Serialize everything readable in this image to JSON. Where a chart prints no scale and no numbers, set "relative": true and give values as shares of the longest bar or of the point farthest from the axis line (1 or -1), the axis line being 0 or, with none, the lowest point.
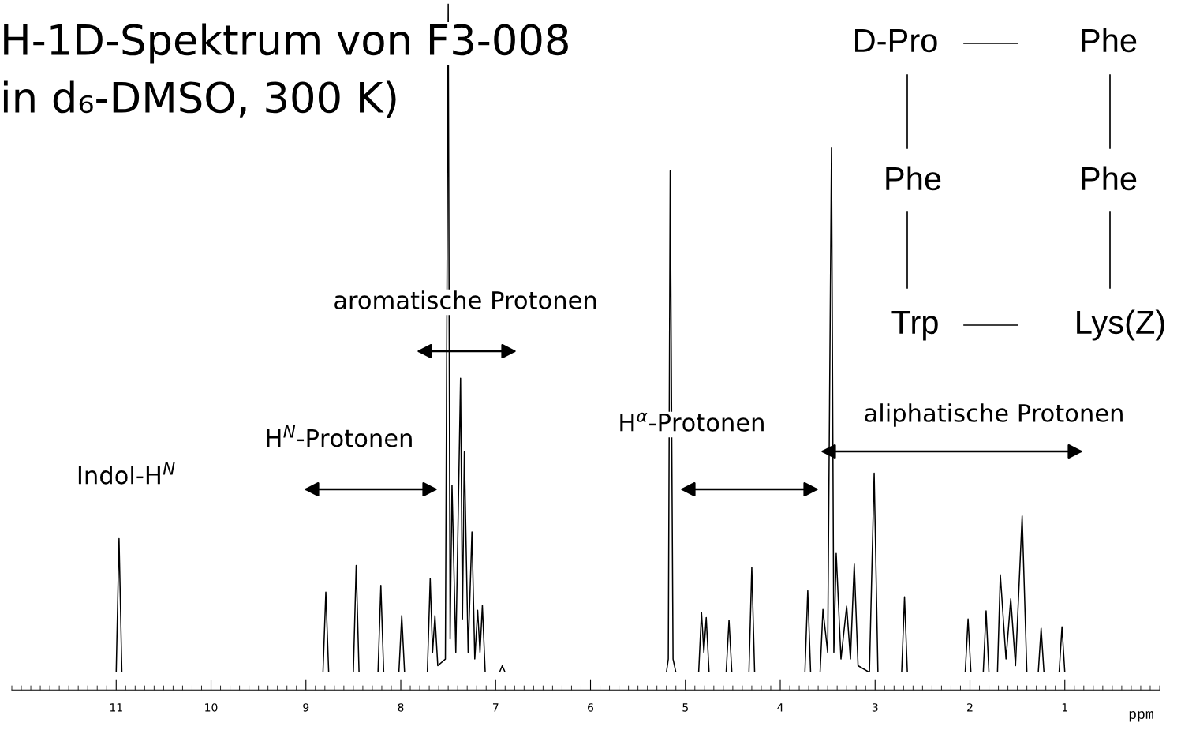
{
  "chart_data": {
    "type": "line",
    "relative": true,
    "title": "H-1D-Spektrum von F3-008",
    "subtitle": "in d₆-DMSO, 300 K)",
    "xlabel": "ppm",
    "xlim": [
      12.1,
      0.0
    ],
    "xticks": [
      11,
      10,
      9,
      8,
      7,
      6,
      5,
      4,
      3,
      2,
      1
    ],
    "x": [
      12.1,
      11.0,
      10.97,
      10.94,
      8.82,
      8.79,
      8.76,
      8.5,
      8.47,
      8.44,
      8.24,
      8.21,
      8.18,
      8.02,
      7.99,
      7.96,
      7.72,
      7.69,
      7.665,
      7.64,
      7.61,
      7.53,
      7.5,
      7.48,
      7.46,
      7.42,
      7.37,
      7.35,
      7.33,
      7.29,
      7.25,
      7.22,
      7.19,
      7.165,
      7.14,
      7.11,
      6.96,
      6.93,
      6.9,
      5.2,
      5.18,
      5.16,
      5.13,
      5.1,
      4.86,
      4.83,
      4.805,
      4.78,
      4.75,
      4.57,
      4.54,
      4.51,
      4.33,
      4.3,
      4.27,
      3.74,
      3.71,
      3.68,
      3.58,
      3.55,
      3.5,
      3.46,
      3.435,
      3.41,
      3.36,
      3.3,
      3.26,
      3.22,
      3.18,
      3.06,
      3.01,
      2.97,
      2.72,
      2.69,
      2.66,
      2.05,
      2.02,
      1.99,
      1.86,
      1.83,
      1.8,
      1.71,
      1.68,
      1.62,
      1.57,
      1.52,
      1.45,
      1.4,
      1.28,
      1.25,
      1.22,
      1.06,
      1.03,
      1.0,
      0.0
    ],
    "series": [
      {
        "color": "#000000",
        "values": [
          0,
          0,
          0.2,
          0,
          0,
          0.12,
          0,
          0,
          0.16,
          0,
          0,
          0.13,
          0,
          0,
          0.085,
          0,
          0,
          0.14,
          0.03,
          0.085,
          0.01,
          0.02,
          1.0,
          0.05,
          0.28,
          0.03,
          0.44,
          0.08,
          0.33,
          0.03,
          0.21,
          0.02,
          0.093,
          0.03,
          0.1,
          0,
          0,
          0.01,
          0,
          0,
          0.02,
          0.75,
          0.02,
          0,
          0,
          0.09,
          0.03,
          0.082,
          0,
          0,
          0.078,
          0,
          0,
          0.157,
          0,
          0,
          0.122,
          0,
          0,
          0.094,
          0.03,
          0.785,
          0.03,
          0.178,
          0.02,
          0.099,
          0.02,
          0.162,
          0.01,
          0,
          0.298,
          0,
          0,
          0.113,
          0,
          0,
          0.08,
          0,
          0,
          0.092,
          0,
          0,
          0.146,
          0.02,
          0.11,
          0.01,
          0.234,
          0,
          0,
          0.066,
          0,
          0,
          0.068,
          0,
          0
        ]
      }
    ],
    "annotations": [
      "Indol-H$^{N}$",
      "H$^{N}$-Protonen",
      "aromatische Protonen",
      "H$^{α}$-Protonen",
      "aliphatische Protonen",
      "D-Pro",
      "Phe",
      "Phe",
      "Phe",
      "Trp",
      "Lys(Z)"
    ]
  }
}
